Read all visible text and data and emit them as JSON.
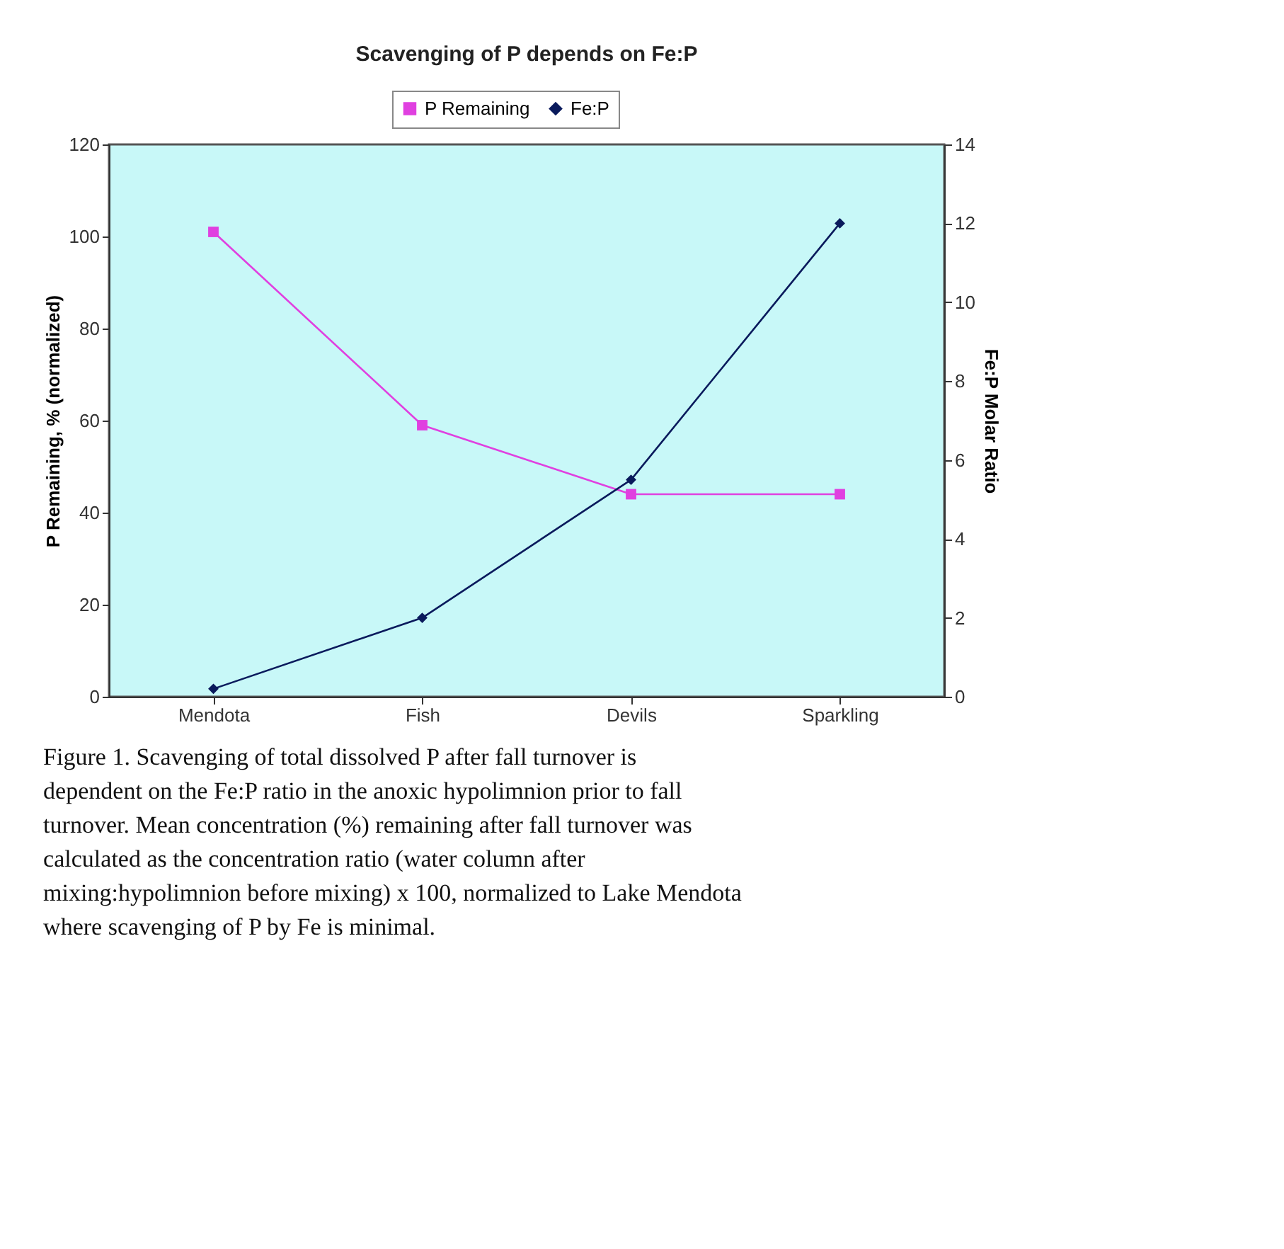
{
  "chart_data": {
    "type": "line",
    "title": "Scavenging of P depends on Fe:P",
    "categories": [
      "Mendota",
      "Fish",
      "Devils",
      "Sparkling"
    ],
    "series": [
      {
        "name": "P Remaining",
        "color": "#e040e0",
        "marker": "square",
        "values": [
          101,
          59,
          44,
          44
        ]
      },
      {
        "name": "Fe:P",
        "color": "#0a1a5c",
        "marker": "diamond",
        "axis": "y2",
        "values": [
          0.2,
          2.0,
          5.5,
          12.0
        ]
      }
    ],
    "ylabel": "P Remaining, % (normalized)",
    "y2label": "Fe:P Molar Ratio",
    "ylim": [
      0,
      120
    ],
    "yticks": [
      0,
      20,
      40,
      60,
      80,
      100,
      120
    ],
    "y2lim": [
      0,
      14
    ],
    "y2ticks": [
      0,
      2,
      4,
      6,
      8,
      10,
      12,
      14
    ],
    "grid": false,
    "legend": "top",
    "line_style": "solid",
    "annotations": [
      "Figure 1. Scavenging of total dissolved P after fall turnover is dependent on the Fe:P ratio in the anoxic hypolimnion prior to fall turnover.  Mean concentration (%) remaining after fall turnover was calculated as the concentration ratio (water column after mixing:hypolimnion before mixing) x 100, normalized to Lake Mendota where scavenging of P by Fe is minimal."
    ]
  }
}
